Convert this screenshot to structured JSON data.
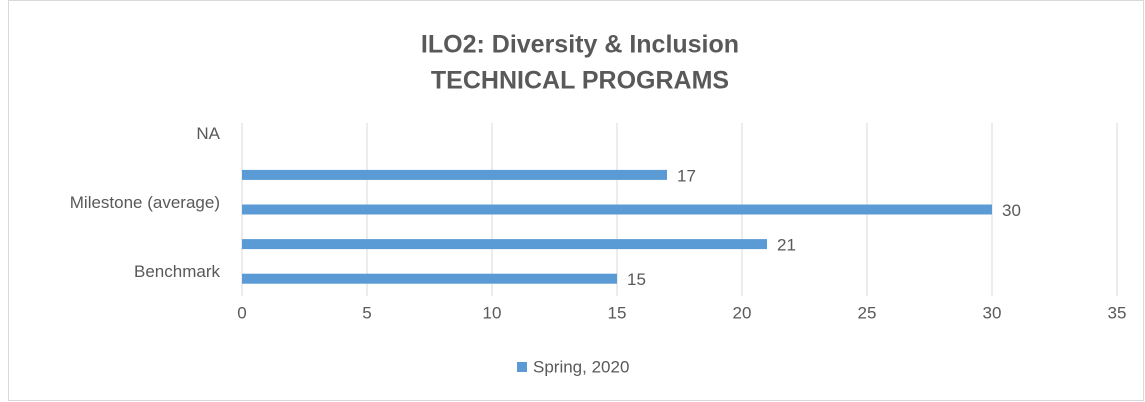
{
  "chart_data": {
    "type": "hbar",
    "title": [
      "ILO2:  Diversity & Inclusion",
      "TECHNICAL PROGRAMS"
    ],
    "categories": [
      "NA",
      null,
      "Milestone (average)",
      null,
      "Benchmark"
    ],
    "series": [
      {
        "name": "Spring, 2020",
        "color": "#5b9bd5",
        "values": [
          null,
          17,
          30,
          21,
          15
        ]
      }
    ],
    "xlim": [
      0,
      35
    ],
    "xticks": [
      0,
      5,
      10,
      15,
      20,
      25,
      30,
      35
    ],
    "grid": true,
    "legend": "bottom"
  }
}
